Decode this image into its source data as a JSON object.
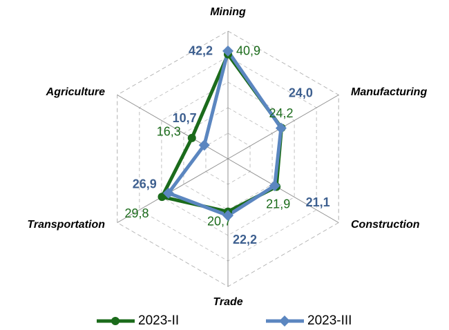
{
  "chart_data": {
    "type": "radar",
    "categories": [
      "Mining",
      "Manufacturing",
      "Construction",
      "Trade",
      "Transportation",
      "Agriculture"
    ],
    "ylim": [
      0,
      50
    ],
    "yticks": [
      0,
      10,
      20,
      30,
      40,
      50
    ],
    "grid": true,
    "legend": "bottom",
    "series": [
      {
        "name": "2023-II",
        "color": "#1b6b1b",
        "marker": "circle",
        "values": [
          40.9,
          24.2,
          21.9,
          20.7,
          29.8,
          16.3
        ],
        "value_labels": [
          "40,9",
          "24,2",
          "21,9",
          "20,7",
          "29,8",
          "16,3"
        ]
      },
      {
        "name": "2023-III",
        "color": "#5b86c0",
        "marker": "diamond",
        "values": [
          42.2,
          24.0,
          21.1,
          22.2,
          26.9,
          10.7
        ],
        "value_labels": [
          "42,2",
          "24,0",
          "21,1",
          "22,2",
          "26,9",
          "10,7"
        ]
      }
    ]
  }
}
